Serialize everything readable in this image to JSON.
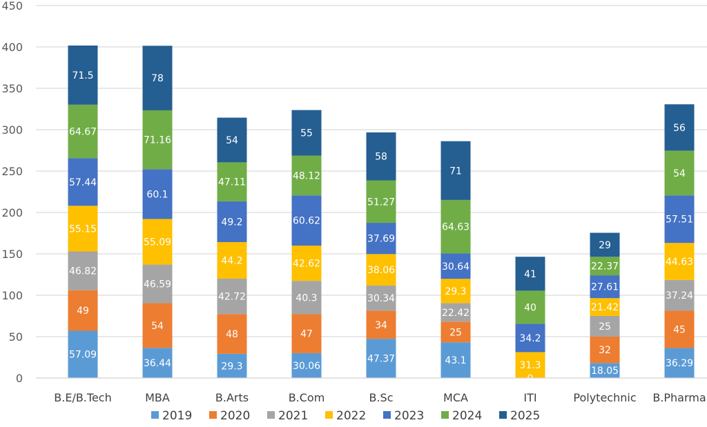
{
  "chart_data": {
    "type": "bar",
    "stacked": true,
    "title": "",
    "xlabel": "",
    "ylabel": "",
    "ylim": [
      0,
      450
    ],
    "yticks": [
      0,
      50,
      100,
      150,
      200,
      250,
      300,
      350,
      400,
      450
    ],
    "grid": true,
    "legend_position": "bottom",
    "categories": [
      "B.E/B.Tech",
      "MBA",
      "B.Arts",
      "B.Com",
      "B.Sc",
      "MCA",
      "ITI",
      "Polytechnic",
      "B.Pharma"
    ],
    "series": [
      {
        "name": "2019",
        "color": "#5B9BD5",
        "values": [
          57.09,
          36.44,
          29.3,
          30.06,
          47.37,
          43.1,
          0,
          18.05,
          36.29
        ]
      },
      {
        "name": "2020",
        "color": "#ED7D31",
        "values": [
          49,
          54,
          48,
          47,
          34,
          25,
          0,
          32,
          45
        ]
      },
      {
        "name": "2021",
        "color": "#A5A5A5",
        "values": [
          46.82,
          46.59,
          42.72,
          40.3,
          30.34,
          22.42,
          0,
          25,
          37.24
        ]
      },
      {
        "name": "2022",
        "color": "#FFC000",
        "values": [
          55.15,
          55.09,
          44.2,
          42.62,
          38.06,
          29.3,
          31.3,
          21.42,
          44.63
        ]
      },
      {
        "name": "2023",
        "color": "#4472C4",
        "values": [
          57.44,
          60.1,
          49.2,
          60.62,
          37.69,
          30.64,
          34.2,
          27.61,
          57.51
        ]
      },
      {
        "name": "2024",
        "color": "#70AD47",
        "values": [
          64.67,
          71.16,
          47.11,
          48.12,
          51.27,
          64.63,
          40,
          22.37,
          54
        ]
      },
      {
        "name": "2025",
        "color": "#255E91",
        "values": [
          71.5,
          78,
          54,
          55,
          58,
          71,
          41,
          29,
          56
        ]
      }
    ],
    "visible_zero_labels": [
      {
        "category": "ITI",
        "series": "2019",
        "label": "0"
      }
    ]
  }
}
